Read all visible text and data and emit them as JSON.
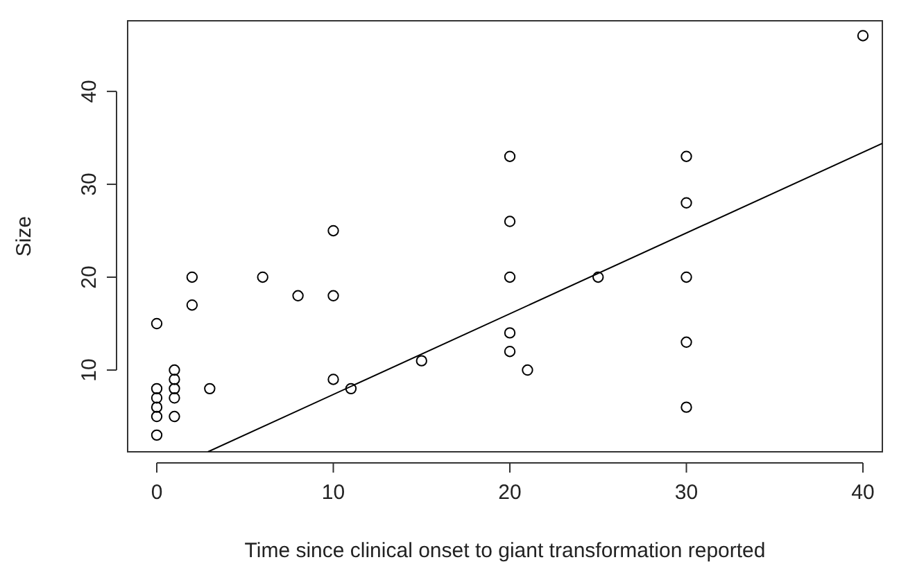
{
  "chart_data": {
    "type": "scatter",
    "xlabel": "Time since clinical onset to giant transformation reported",
    "ylabel": "Size",
    "xlim": [
      -1.65,
      41.1
    ],
    "ylim": [
      1.2,
      47.6
    ],
    "xticks": [
      0,
      10,
      20,
      30,
      40
    ],
    "yticks": [
      10,
      20,
      30,
      40
    ],
    "grid": false,
    "series": [
      {
        "color": "#000000",
        "marker": "circle",
        "x": [
          0,
          0,
          0,
          0,
          0,
          0,
          1,
          1,
          1,
          1,
          1,
          2,
          2,
          3,
          6,
          8,
          10,
          10,
          10,
          11,
          15,
          20,
          20,
          20,
          20,
          20,
          21,
          25,
          30,
          30,
          30,
          30,
          30,
          40
        ],
        "values": [
          15,
          8,
          7,
          6,
          5,
          3,
          10,
          9,
          8,
          7,
          5,
          20,
          17,
          8,
          20,
          18,
          25,
          18,
          9,
          8,
          11,
          33,
          26,
          20,
          14,
          12,
          10,
          20,
          33,
          28,
          20,
          13,
          6,
          46
        ]
      },
      {
        "type": "line",
        "color": "#000000",
        "x": [
          2.9,
          41.1
        ],
        "values": [
          1.2,
          34.4
        ]
      }
    ]
  }
}
